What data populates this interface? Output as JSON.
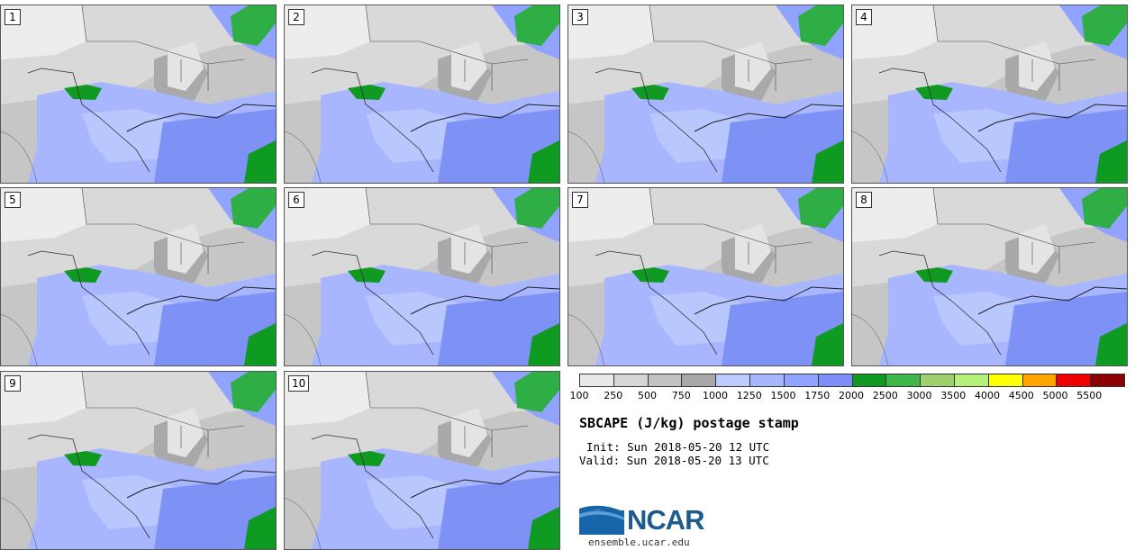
{
  "panels": [
    {
      "label": "1"
    },
    {
      "label": "2"
    },
    {
      "label": "3"
    },
    {
      "label": "4"
    },
    {
      "label": "5"
    },
    {
      "label": "6"
    },
    {
      "label": "7"
    },
    {
      "label": "8"
    },
    {
      "label": "9"
    },
    {
      "label": "10"
    }
  ],
  "colorbar": {
    "colors": [
      "#e8e8e8",
      "#d6d6d6",
      "#c2c2c2",
      "#a8a8a8",
      "#bccbff",
      "#a6b6ff",
      "#8fa3ff",
      "#7e90f7",
      "#109a22",
      "#3fb64a",
      "#9fcf6f",
      "#b5f07a",
      "#ffff00",
      "#ffa500",
      "#ee0000",
      "#8b0000"
    ],
    "ticks": [
      "100",
      "250",
      "500",
      "750",
      "1000",
      "1250",
      "1500",
      "1750",
      "2000",
      "2500",
      "3000",
      "3500",
      "4000",
      "4500",
      "5000",
      "5500"
    ]
  },
  "title": "SBCAPE (J/kg) postage stamp",
  "init": "Init: Sun 2018-05-20 12 UTC",
  "valid": "Valid: Sun 2018-05-20 13 UTC",
  "logo": "NCAR",
  "website": "ensemble.ucar.edu"
}
